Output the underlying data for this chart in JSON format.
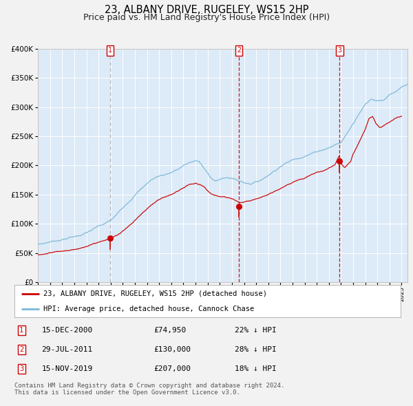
{
  "title": "23, ALBANY DRIVE, RUGELEY, WS15 2HP",
  "subtitle": "Price paid vs. HM Land Registry's House Price Index (HPI)",
  "fig_bg_color": "#f2f2f2",
  "plot_bg_color": "#ddeaf7",
  "hpi_color": "#7ab8d8",
  "price_color": "#cc0000",
  "marker_color": "#cc0000",
  "ylim": [
    0,
    400000
  ],
  "yticks": [
    0,
    50000,
    100000,
    150000,
    200000,
    250000,
    300000,
    350000,
    400000
  ],
  "xlim_start": 1995.0,
  "xlim_end": 2025.5,
  "sale_dates": [
    2000.958,
    2011.572,
    2019.875
  ],
  "sale_prices": [
    74950,
    130000,
    207000
  ],
  "sale_labels": [
    "1",
    "2",
    "3"
  ],
  "legend_label_price": "23, ALBANY DRIVE, RUGELEY, WS15 2HP (detached house)",
  "legend_label_hpi": "HPI: Average price, detached house, Cannock Chase",
  "table_entries": [
    {
      "num": "1",
      "date": "15-DEC-2000",
      "price": "£74,950",
      "pct": "22% ↓ HPI"
    },
    {
      "num": "2",
      "date": "29-JUL-2011",
      "price": "£130,000",
      "pct": "28% ↓ HPI"
    },
    {
      "num": "3",
      "date": "15-NOV-2019",
      "price": "£207,000",
      "pct": "18% ↓ HPI"
    }
  ],
  "footnote": "Contains HM Land Registry data © Crown copyright and database right 2024.\nThis data is licensed under the Open Government Licence v3.0.",
  "title_fontsize": 10.5,
  "subtitle_fontsize": 9,
  "legend_fontsize": 7.5,
  "table_fontsize": 8,
  "footnote_fontsize": 6.5
}
